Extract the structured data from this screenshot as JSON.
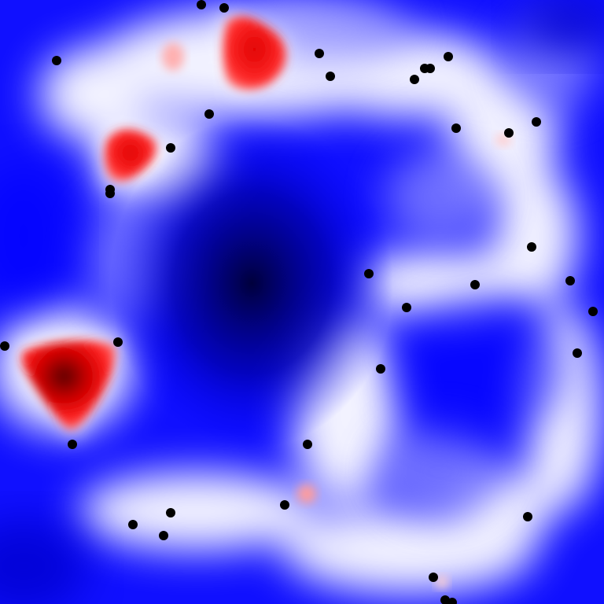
{
  "field": {
    "colors": {
      "background": "#0000ff",
      "deep_negative": "#00004a",
      "ridge": "#ffffff",
      "positive": "#ff0000",
      "peak_positive": "#7a0000",
      "point": "#000000"
    },
    "points_count": 47
  }
}
